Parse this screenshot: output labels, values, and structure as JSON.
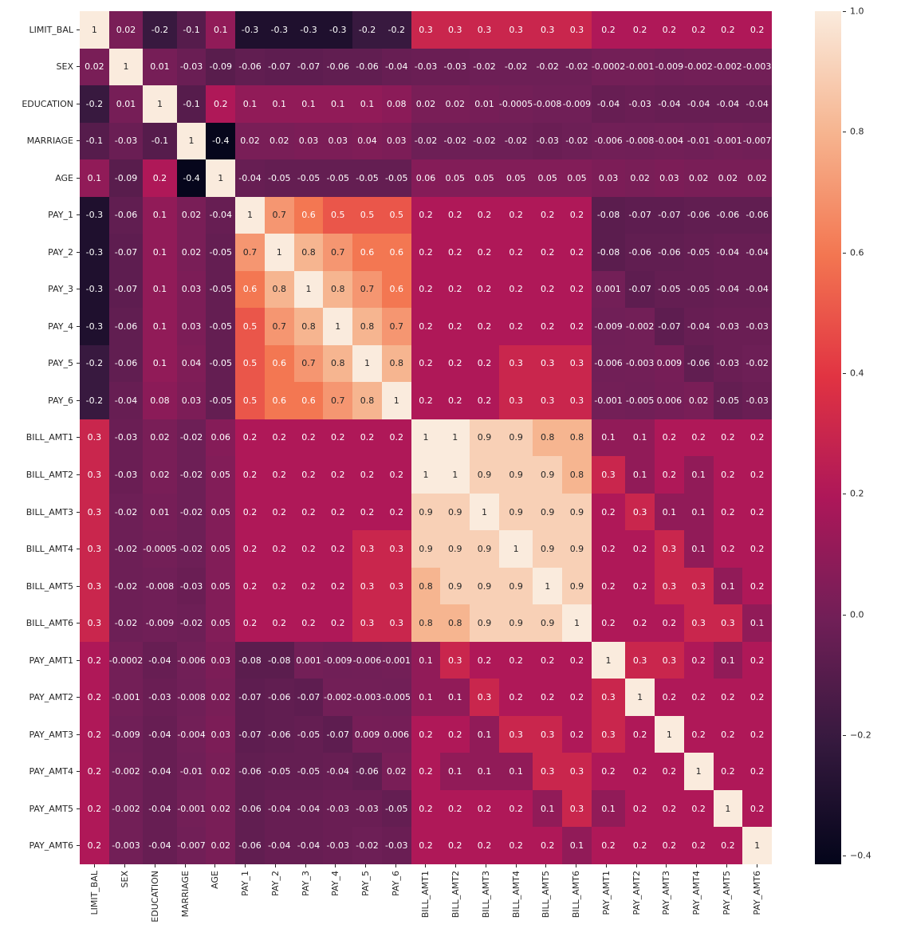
{
  "chart_data": {
    "type": "heatmap",
    "title": "",
    "labels": [
      "LIMIT_BAL",
      "SEX",
      "EDUCATION",
      "MARRIAGE",
      "AGE",
      "PAY_1",
      "PAY_2",
      "PAY_3",
      "PAY_4",
      "PAY_5",
      "PAY_6",
      "BILL_AMT1",
      "BILL_AMT2",
      "BILL_AMT3",
      "BILL_AMT4",
      "BILL_AMT5",
      "BILL_AMT6",
      "PAY_AMT1",
      "PAY_AMT2",
      "PAY_AMT3",
      "PAY_AMT4",
      "PAY_AMT5",
      "PAY_AMT6"
    ],
    "matrix": [
      [
        "1",
        "0.02",
        "-0.2",
        "-0.1",
        "0.1",
        "-0.3",
        "-0.3",
        "-0.3",
        "-0.3",
        "-0.2",
        "-0.2",
        "0.3",
        "0.3",
        "0.3",
        "0.3",
        "0.3",
        "0.3",
        "0.2",
        "0.2",
        "0.2",
        "0.2",
        "0.2",
        "0.2"
      ],
      [
        "0.02",
        "1",
        "0.01",
        "-0.03",
        "-0.09",
        "-0.06",
        "-0.07",
        "-0.07",
        "-0.06",
        "-0.06",
        "-0.04",
        "-0.03",
        "-0.03",
        "-0.02",
        "-0.02",
        "-0.02",
        "-0.02",
        "-0.0002",
        "-0.001",
        "-0.009",
        "-0.002",
        "-0.002",
        "-0.003"
      ],
      [
        "-0.2",
        "0.01",
        "1",
        "-0.1",
        "0.2",
        "0.1",
        "0.1",
        "0.1",
        "0.1",
        "0.1",
        "0.08",
        "0.02",
        "0.02",
        "0.01",
        "-0.0005",
        "-0.008",
        "-0.009",
        "-0.04",
        "-0.03",
        "-0.04",
        "-0.04",
        "-0.04",
        "-0.04"
      ],
      [
        "-0.1",
        "-0.03",
        "-0.1",
        "1",
        "-0.4",
        "0.02",
        "0.02",
        "0.03",
        "0.03",
        "0.04",
        "0.03",
        "-0.02",
        "-0.02",
        "-0.02",
        "-0.02",
        "-0.03",
        "-0.02",
        "-0.006",
        "-0.008",
        "-0.004",
        "-0.01",
        "-0.001",
        "-0.007"
      ],
      [
        "0.1",
        "-0.09",
        "0.2",
        "-0.4",
        "1",
        "-0.04",
        "-0.05",
        "-0.05",
        "-0.05",
        "-0.05",
        "-0.05",
        "0.06",
        "0.05",
        "0.05",
        "0.05",
        "0.05",
        "0.05",
        "0.03",
        "0.02",
        "0.03",
        "0.02",
        "0.02",
        "0.02"
      ],
      [
        "-0.3",
        "-0.06",
        "0.1",
        "0.02",
        "-0.04",
        "1",
        "0.7",
        "0.6",
        "0.5",
        "0.5",
        "0.5",
        "0.2",
        "0.2",
        "0.2",
        "0.2",
        "0.2",
        "0.2",
        "-0.08",
        "-0.07",
        "-0.07",
        "-0.06",
        "-0.06",
        "-0.06"
      ],
      [
        "-0.3",
        "-0.07",
        "0.1",
        "0.02",
        "-0.05",
        "0.7",
        "1",
        "0.8",
        "0.7",
        "0.6",
        "0.6",
        "0.2",
        "0.2",
        "0.2",
        "0.2",
        "0.2",
        "0.2",
        "-0.08",
        "-0.06",
        "-0.06",
        "-0.05",
        "-0.04",
        "-0.04"
      ],
      [
        "-0.3",
        "-0.07",
        "0.1",
        "0.03",
        "-0.05",
        "0.6",
        "0.8",
        "1",
        "0.8",
        "0.7",
        "0.6",
        "0.2",
        "0.2",
        "0.2",
        "0.2",
        "0.2",
        "0.2",
        "0.001",
        "-0.07",
        "-0.05",
        "-0.05",
        "-0.04",
        "-0.04"
      ],
      [
        "-0.3",
        "-0.06",
        "0.1",
        "0.03",
        "-0.05",
        "0.5",
        "0.7",
        "0.8",
        "1",
        "0.8",
        "0.7",
        "0.2",
        "0.2",
        "0.2",
        "0.2",
        "0.2",
        "0.2",
        "-0.009",
        "-0.002",
        "-0.07",
        "-0.04",
        "-0.03",
        "-0.03"
      ],
      [
        "-0.2",
        "-0.06",
        "0.1",
        "0.04",
        "-0.05",
        "0.5",
        "0.6",
        "0.7",
        "0.8",
        "1",
        "0.8",
        "0.2",
        "0.2",
        "0.2",
        "0.3",
        "0.3",
        "0.3",
        "-0.006",
        "-0.003",
        "0.009",
        "-0.06",
        "-0.03",
        "-0.02"
      ],
      [
        "-0.2",
        "-0.04",
        "0.08",
        "0.03",
        "-0.05",
        "0.5",
        "0.6",
        "0.6",
        "0.7",
        "0.8",
        "1",
        "0.2",
        "0.2",
        "0.2",
        "0.3",
        "0.3",
        "0.3",
        "-0.001",
        "-0.005",
        "0.006",
        "0.02",
        "-0.05",
        "-0.03"
      ],
      [
        "0.3",
        "-0.03",
        "0.02",
        "-0.02",
        "0.06",
        "0.2",
        "0.2",
        "0.2",
        "0.2",
        "0.2",
        "0.2",
        "1",
        "1",
        "0.9",
        "0.9",
        "0.8",
        "0.8",
        "0.1",
        "0.1",
        "0.2",
        "0.2",
        "0.2",
        "0.2"
      ],
      [
        "0.3",
        "-0.03",
        "0.02",
        "-0.02",
        "0.05",
        "0.2",
        "0.2",
        "0.2",
        "0.2",
        "0.2",
        "0.2",
        "1",
        "1",
        "0.9",
        "0.9",
        "0.9",
        "0.8",
        "0.3",
        "0.1",
        "0.2",
        "0.1",
        "0.2",
        "0.2"
      ],
      [
        "0.3",
        "-0.02",
        "0.01",
        "-0.02",
        "0.05",
        "0.2",
        "0.2",
        "0.2",
        "0.2",
        "0.2",
        "0.2",
        "0.9",
        "0.9",
        "1",
        "0.9",
        "0.9",
        "0.9",
        "0.2",
        "0.3",
        "0.1",
        "0.1",
        "0.2",
        "0.2"
      ],
      [
        "0.3",
        "-0.02",
        "-0.0005",
        "-0.02",
        "0.05",
        "0.2",
        "0.2",
        "0.2",
        "0.2",
        "0.3",
        "0.3",
        "0.9",
        "0.9",
        "0.9",
        "1",
        "0.9",
        "0.9",
        "0.2",
        "0.2",
        "0.3",
        "0.1",
        "0.2",
        "0.2"
      ],
      [
        "0.3",
        "-0.02",
        "-0.008",
        "-0.03",
        "0.05",
        "0.2",
        "0.2",
        "0.2",
        "0.2",
        "0.3",
        "0.3",
        "0.8",
        "0.9",
        "0.9",
        "0.9",
        "1",
        "0.9",
        "0.2",
        "0.2",
        "0.3",
        "0.3",
        "0.1",
        "0.2"
      ],
      [
        "0.3",
        "-0.02",
        "-0.009",
        "-0.02",
        "0.05",
        "0.2",
        "0.2",
        "0.2",
        "0.2",
        "0.3",
        "0.3",
        "0.8",
        "0.8",
        "0.9",
        "0.9",
        "0.9",
        "1",
        "0.2",
        "0.2",
        "0.2",
        "0.3",
        "0.3",
        "0.1"
      ],
      [
        "0.2",
        "-0.0002",
        "-0.04",
        "-0.006",
        "0.03",
        "-0.08",
        "-0.08",
        "0.001",
        "-0.009",
        "-0.006",
        "-0.001",
        "0.1",
        "0.3",
        "0.2",
        "0.2",
        "0.2",
        "0.2",
        "1",
        "0.3",
        "0.3",
        "0.2",
        "0.1",
        "0.2"
      ],
      [
        "0.2",
        "-0.001",
        "-0.03",
        "-0.008",
        "0.02",
        "-0.07",
        "-0.06",
        "-0.07",
        "-0.002",
        "-0.003",
        "-0.005",
        "0.1",
        "0.1",
        "0.3",
        "0.2",
        "0.2",
        "0.2",
        "0.3",
        "1",
        "0.2",
        "0.2",
        "0.2",
        "0.2"
      ],
      [
        "0.2",
        "-0.009",
        "-0.04",
        "-0.004",
        "0.03",
        "-0.07",
        "-0.06",
        "-0.05",
        "-0.07",
        "0.009",
        "0.006",
        "0.2",
        "0.2",
        "0.1",
        "0.3",
        "0.3",
        "0.2",
        "0.3",
        "0.2",
        "1",
        "0.2",
        "0.2",
        "0.2"
      ],
      [
        "0.2",
        "-0.002",
        "-0.04",
        "-0.01",
        "0.02",
        "-0.06",
        "-0.05",
        "-0.05",
        "-0.04",
        "-0.06",
        "0.02",
        "0.2",
        "0.1",
        "0.1",
        "0.1",
        "0.3",
        "0.3",
        "0.2",
        "0.2",
        "0.2",
        "1",
        "0.2",
        "0.2"
      ],
      [
        "0.2",
        "-0.002",
        "-0.04",
        "-0.001",
        "0.02",
        "-0.06",
        "-0.04",
        "-0.04",
        "-0.03",
        "-0.03",
        "-0.05",
        "0.2",
        "0.2",
        "0.2",
        "0.2",
        "0.1",
        "0.3",
        "0.1",
        "0.2",
        "0.2",
        "0.2",
        "1",
        "0.2"
      ],
      [
        "0.2",
        "-0.003",
        "-0.04",
        "-0.007",
        "0.02",
        "-0.06",
        "-0.04",
        "-0.04",
        "-0.03",
        "-0.02",
        "-0.03",
        "0.2",
        "0.2",
        "0.2",
        "0.2",
        "0.2",
        "0.1",
        "0.2",
        "0.2",
        "0.2",
        "0.2",
        "0.2",
        "1"
      ]
    ],
    "vmin": -0.414,
    "vmax": 1.0,
    "grid": false,
    "colorbar": {
      "ticks": [
        "1.0",
        "0.8",
        "0.6",
        "0.4",
        "0.2",
        "0.0",
        "−0.2",
        "−0.4"
      ],
      "tick_values": [
        1.0,
        0.8,
        0.6,
        0.4,
        0.2,
        0.0,
        -0.2,
        -0.4
      ],
      "position": "right"
    },
    "colormap": {
      "name": "rocket",
      "stops": [
        {
          "t": 0.0,
          "color": "#03051A"
        },
        {
          "t": 0.143,
          "color": "#35193E"
        },
        {
          "t": 0.286,
          "color": "#701F57"
        },
        {
          "t": 0.429,
          "color": "#AD1759"
        },
        {
          "t": 0.571,
          "color": "#E13342"
        },
        {
          "t": 0.714,
          "color": "#F37651"
        },
        {
          "t": 0.857,
          "color": "#F6B48F"
        },
        {
          "t": 1.0,
          "color": "#FAEBDD"
        }
      ],
      "annot_dark": "#262626",
      "annot_light": "#ffffff",
      "tick_color": "#262626",
      "background": "#ffffff"
    }
  }
}
